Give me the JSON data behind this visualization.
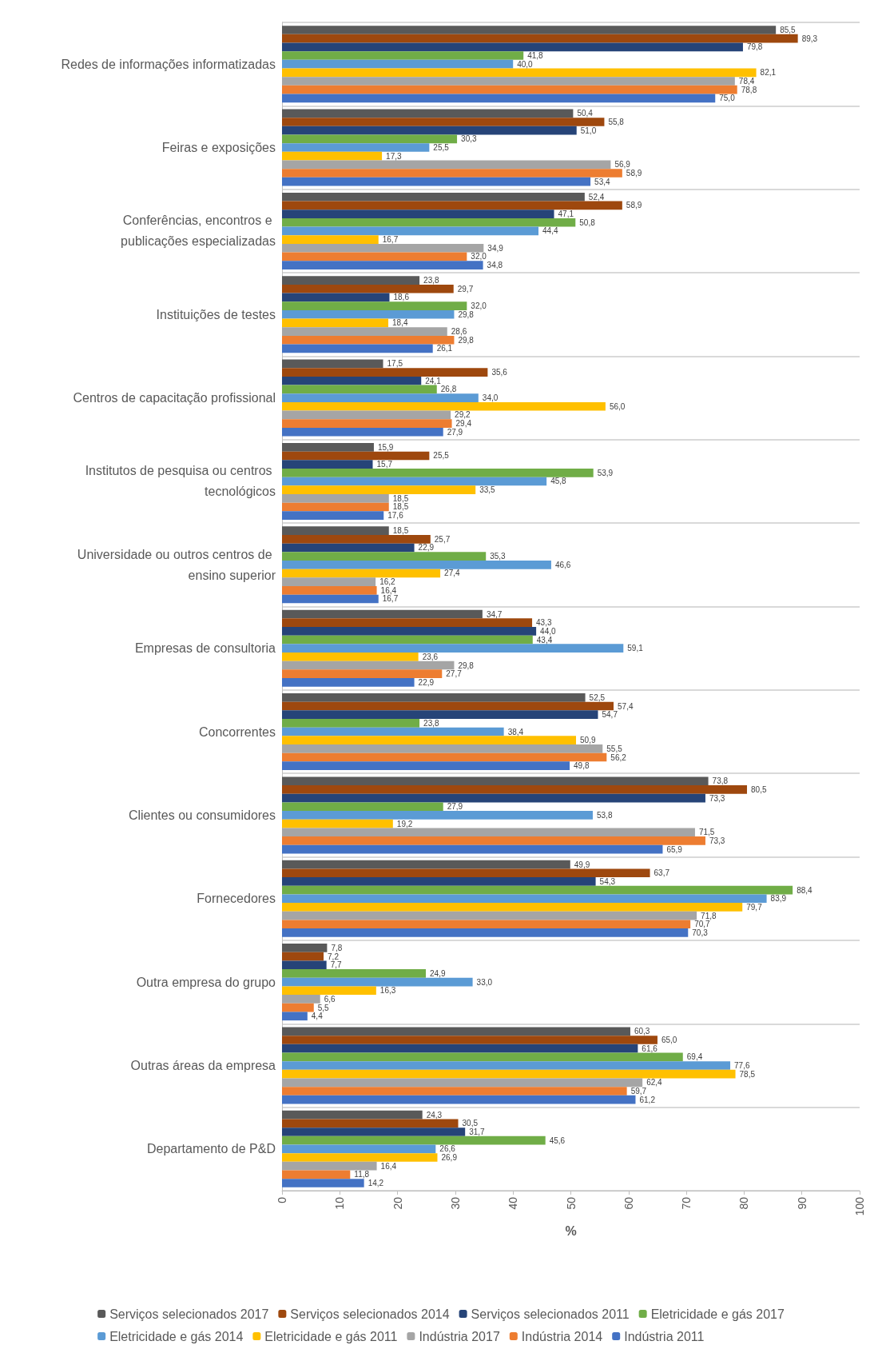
{
  "chart_data": {
    "type": "bar",
    "orientation": "horizontal",
    "xlabel": "%",
    "categories": [
      "Redes de informações informatizadas",
      "Feiras e exposições",
      "Conferências, encontros e publicações especializadas",
      "Instituições de testes",
      "Centros de capacitação profissional",
      "Institutos de pesquisa ou centros tecnológicos",
      "Universidade ou outros centros de ensino superior",
      "Empresas de consultoria",
      "Concorrentes",
      "Clientes ou consumidores",
      "Fornecedores",
      "Outra empresa do grupo",
      "Outras áreas da empresa",
      "Departamento de P&D"
    ],
    "series": [
      {
        "name": "Serviços selecionados 2017",
        "color": "#595959",
        "values": [
          85.5,
          50.4,
          52.4,
          23.8,
          17.5,
          15.9,
          18.5,
          34.7,
          52.5,
          73.8,
          49.9,
          7.8,
          60.3,
          24.3
        ],
        "value_labels": [
          "85,5",
          "50,4",
          "52,4",
          "23,8",
          "17,5",
          "15,9",
          "18,5",
          "34,7",
          "52,5",
          "73,8",
          "49,9",
          "7,8",
          "60,3",
          "24,3"
        ]
      },
      {
        "name": "Serviços selecionados 2014",
        "color": "#9e480e",
        "values": [
          89.3,
          55.8,
          58.9,
          29.7,
          35.6,
          25.5,
          25.7,
          43.3,
          57.4,
          80.5,
          63.7,
          7.2,
          65.0,
          30.5
        ],
        "value_labels": [
          "89,3",
          "55,8",
          "58,9",
          "29,7",
          "35,6",
          "25,5",
          "25,7",
          "43,3",
          "57,4",
          "80,5",
          "63,7",
          "7,2",
          "65,0",
          "30,5"
        ]
      },
      {
        "name": "Serviços selecionados 2011",
        "color": "#264478",
        "values": [
          79.8,
          51.0,
          47.1,
          18.6,
          24.1,
          15.7,
          22.9,
          44.0,
          54.7,
          73.3,
          54.3,
          7.7,
          61.6,
          31.7
        ],
        "value_labels": [
          "79,8",
          "51,0",
          "47,1",
          "18,6",
          "24,1",
          "15,7",
          "22,9",
          "44,0",
          "54,7",
          "73,3",
          "54,3",
          "7,7",
          "61,6",
          "31,7"
        ]
      },
      {
        "name": "Eletricidade e gás 2017",
        "color": "#70ad47",
        "values": [
          41.8,
          30.3,
          50.8,
          32.0,
          26.8,
          53.9,
          35.3,
          43.4,
          23.8,
          27.9,
          88.4,
          24.9,
          69.4,
          45.6
        ],
        "value_labels": [
          "41,8",
          "30,3",
          "50,8",
          "32,0",
          "26,8",
          "53,9",
          "35,3",
          "43,4",
          "23,8",
          "27,9",
          "88,4",
          "24,9",
          "69,4",
          "45,6"
        ]
      },
      {
        "name": "Eletricidade e gás 2014",
        "color": "#5b9bd5",
        "values": [
          40.0,
          25.5,
          44.4,
          29.8,
          34.0,
          45.8,
          46.6,
          59.1,
          38.4,
          53.8,
          83.9,
          33.0,
          77.6,
          26.6
        ],
        "value_labels": [
          "40,0",
          "25,5",
          "44,4",
          "29,8",
          "34,0",
          "45,8",
          "46,6",
          "59,1",
          "38,4",
          "53,8",
          "83,9",
          "33,0",
          "77,6",
          "26,6"
        ]
      },
      {
        "name": "Eletricidade e gás 2011",
        "color": "#ffc000",
        "values": [
          82.1,
          17.3,
          16.7,
          18.4,
          56.0,
          33.5,
          27.4,
          23.6,
          50.9,
          19.2,
          79.7,
          16.3,
          78.5,
          26.9
        ],
        "value_labels": [
          "82,1",
          "17,3",
          "16,7",
          "18,4",
          "56,0",
          "33,5",
          "27,4",
          "23,6",
          "50,9",
          "19,2",
          "79,7",
          "16,3",
          "78,5",
          "26,9"
        ]
      },
      {
        "name": "Indústria 2017",
        "color": "#a5a5a5",
        "values": [
          78.4,
          56.9,
          34.9,
          28.6,
          29.2,
          18.5,
          16.2,
          29.8,
          55.5,
          71.5,
          71.8,
          6.6,
          62.4,
          16.4
        ],
        "value_labels": [
          "78,4",
          "56,9",
          "34,9",
          "28,6",
          "29,2",
          "18,5",
          "16,2",
          "29,8",
          "55,5",
          "71,5",
          "71,8",
          "6,6",
          "62,4",
          "16,4"
        ]
      },
      {
        "name": "Indústria 2014",
        "color": "#ed7d31",
        "values": [
          78.8,
          58.9,
          32.0,
          29.8,
          29.4,
          18.5,
          16.4,
          27.7,
          56.2,
          73.3,
          70.7,
          5.5,
          59.7,
          11.8
        ],
        "value_labels": [
          "78,8",
          "58,9",
          "32,0",
          "29,8",
          "29,4",
          "18,5",
          "16,4",
          "27,7",
          "56,2",
          "73,3",
          "70,7",
          "5,5",
          "59,7",
          "11,8"
        ]
      },
      {
        "name": "Indústria 2011",
        "color": "#4472c4",
        "values": [
          75.0,
          53.4,
          34.8,
          26.1,
          27.9,
          17.6,
          16.7,
          22.9,
          49.8,
          65.9,
          70.3,
          4.4,
          61.2,
          14.2
        ],
        "value_labels": [
          "75,0",
          "53,4",
          "34,8",
          "26,1",
          "27,9",
          "17,6",
          "16,7",
          "22,9",
          "49,8",
          "65,9",
          "70,3",
          "4,4",
          "61,2",
          "14,2"
        ]
      }
    ],
    "xlim": [
      0,
      100
    ],
    "xticks": [
      0,
      10,
      20,
      30,
      40,
      50,
      60,
      70,
      80,
      90,
      100
    ],
    "grid": "y",
    "legend": "bottom"
  }
}
